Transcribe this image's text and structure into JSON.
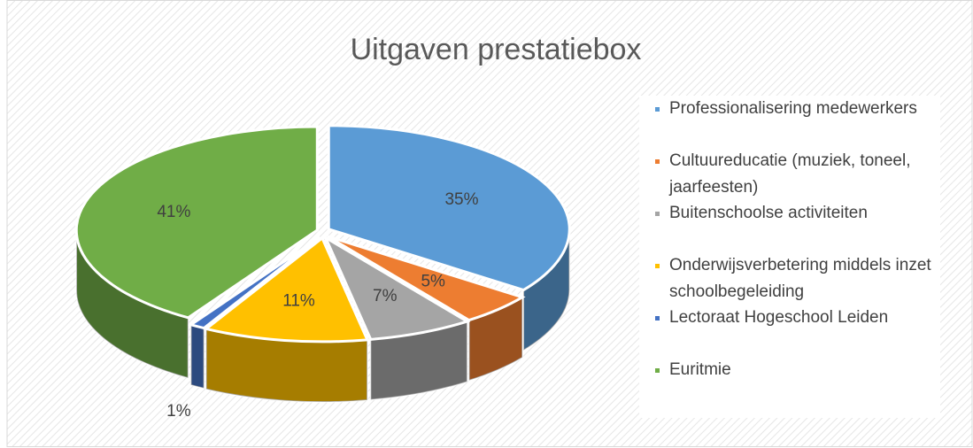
{
  "chart_data": {
    "type": "pie",
    "title": "Uitgaven prestatiebox",
    "categories": [
      "Professionalisering medewerkers",
      "Cultuureducatie (muziek, toneel, jaarfeesten)",
      "Buitenschoolse activiteiten",
      "Onderwijsverbetering middels inzet schoolbegeleiding",
      "Lectoraat Hogeschool Leiden",
      "Euritmie"
    ],
    "values": [
      35,
      5,
      7,
      11,
      1,
      41
    ],
    "value_labels": [
      "35%",
      "5%",
      "7%",
      "11%",
      "1%",
      "41%"
    ],
    "colors": [
      "#5b9bd5",
      "#ed7d31",
      "#a5a5a5",
      "#ffc000",
      "#4472c4",
      "#70ad47"
    ],
    "legend": "right"
  }
}
